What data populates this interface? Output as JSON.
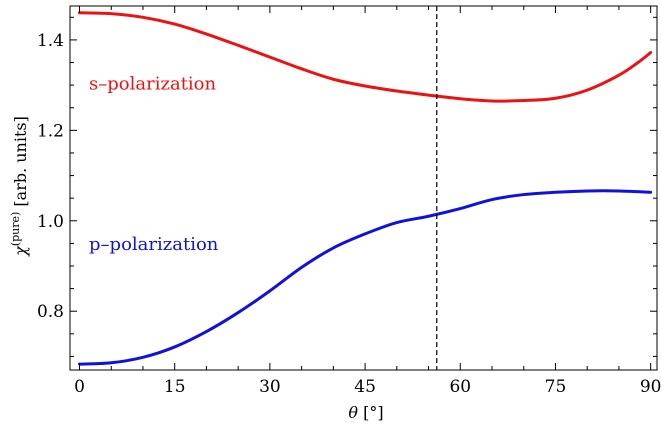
{
  "chart_data": {
    "type": "line",
    "xlabel": "θ [°]",
    "ylabel": "χ(pure) [arb. units]",
    "ylabel_parts": {
      "symbol": "χ",
      "superscript": "(pure)",
      "rest": " [arb. units]"
    },
    "xlabel_parts": {
      "symbol": "θ",
      "rest": " [°]"
    },
    "xlim": [
      -1.5,
      91
    ],
    "ylim": [
      0.67,
      1.475
    ],
    "x_ticks": [
      0,
      15,
      30,
      45,
      60,
      75,
      90
    ],
    "x_tick_labels": [
      "0",
      "15",
      "30",
      "45",
      "60",
      "75",
      "90"
    ],
    "y_ticks": [
      0.8,
      1.0,
      1.2,
      1.4
    ],
    "y_tick_labels": [
      "0.8",
      "1.0",
      "1.2",
      "1.4"
    ],
    "grid": false,
    "vline": {
      "x": 56.3,
      "style": "dashed",
      "color": "#000000"
    },
    "series": [
      {
        "name": "s–polarization",
        "color": "#ee1111",
        "x": [
          0,
          5,
          10,
          15,
          20,
          25,
          30,
          35,
          40,
          45,
          50,
          55,
          60,
          65,
          70,
          75,
          80,
          85,
          88,
          90
        ],
        "y": [
          1.46,
          1.458,
          1.45,
          1.435,
          1.413,
          1.388,
          1.362,
          1.336,
          1.313,
          1.298,
          1.287,
          1.278,
          1.27,
          1.265,
          1.266,
          1.271,
          1.289,
          1.322,
          1.35,
          1.372
        ]
      },
      {
        "name": "p–polarization",
        "color": "#1111dd",
        "x": [
          0,
          5,
          10,
          15,
          20,
          25,
          30,
          35,
          40,
          45,
          50,
          55,
          60,
          65,
          70,
          75,
          80,
          85,
          90
        ],
        "y": [
          0.683,
          0.686,
          0.698,
          0.721,
          0.755,
          0.797,
          0.845,
          0.897,
          0.94,
          0.971,
          0.996,
          1.01,
          1.027,
          1.047,
          1.058,
          1.063,
          1.066,
          1.066,
          1.063
        ]
      }
    ],
    "annotations": [
      {
        "text": "s–polarization",
        "x": 1.5,
        "y": 1.29,
        "color": "#ee1111"
      },
      {
        "text": "p–polarization",
        "x": 1.5,
        "y": 0.935,
        "color": "#1111dd"
      }
    ]
  }
}
